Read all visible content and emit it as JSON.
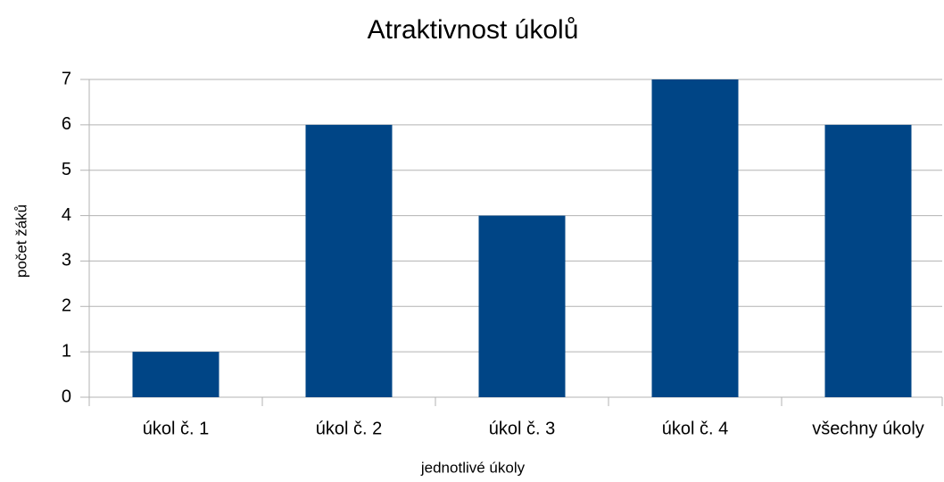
{
  "chart_data": {
    "type": "bar",
    "title": "Atraktivnost úkolů",
    "x_label": "jednotlivé úkoly",
    "y_label": "počet žáků",
    "categories": [
      "úkol č. 1",
      "úkol č. 2",
      "úkol č. 3",
      "úkol č. 4",
      "všechny úkoly"
    ],
    "values": [
      1,
      6,
      4,
      7,
      6
    ],
    "color": "#004586",
    "ylim": [
      0,
      7
    ],
    "yticks": [
      0,
      1,
      2,
      3,
      4,
      5,
      6,
      7
    ],
    "grid": true
  }
}
